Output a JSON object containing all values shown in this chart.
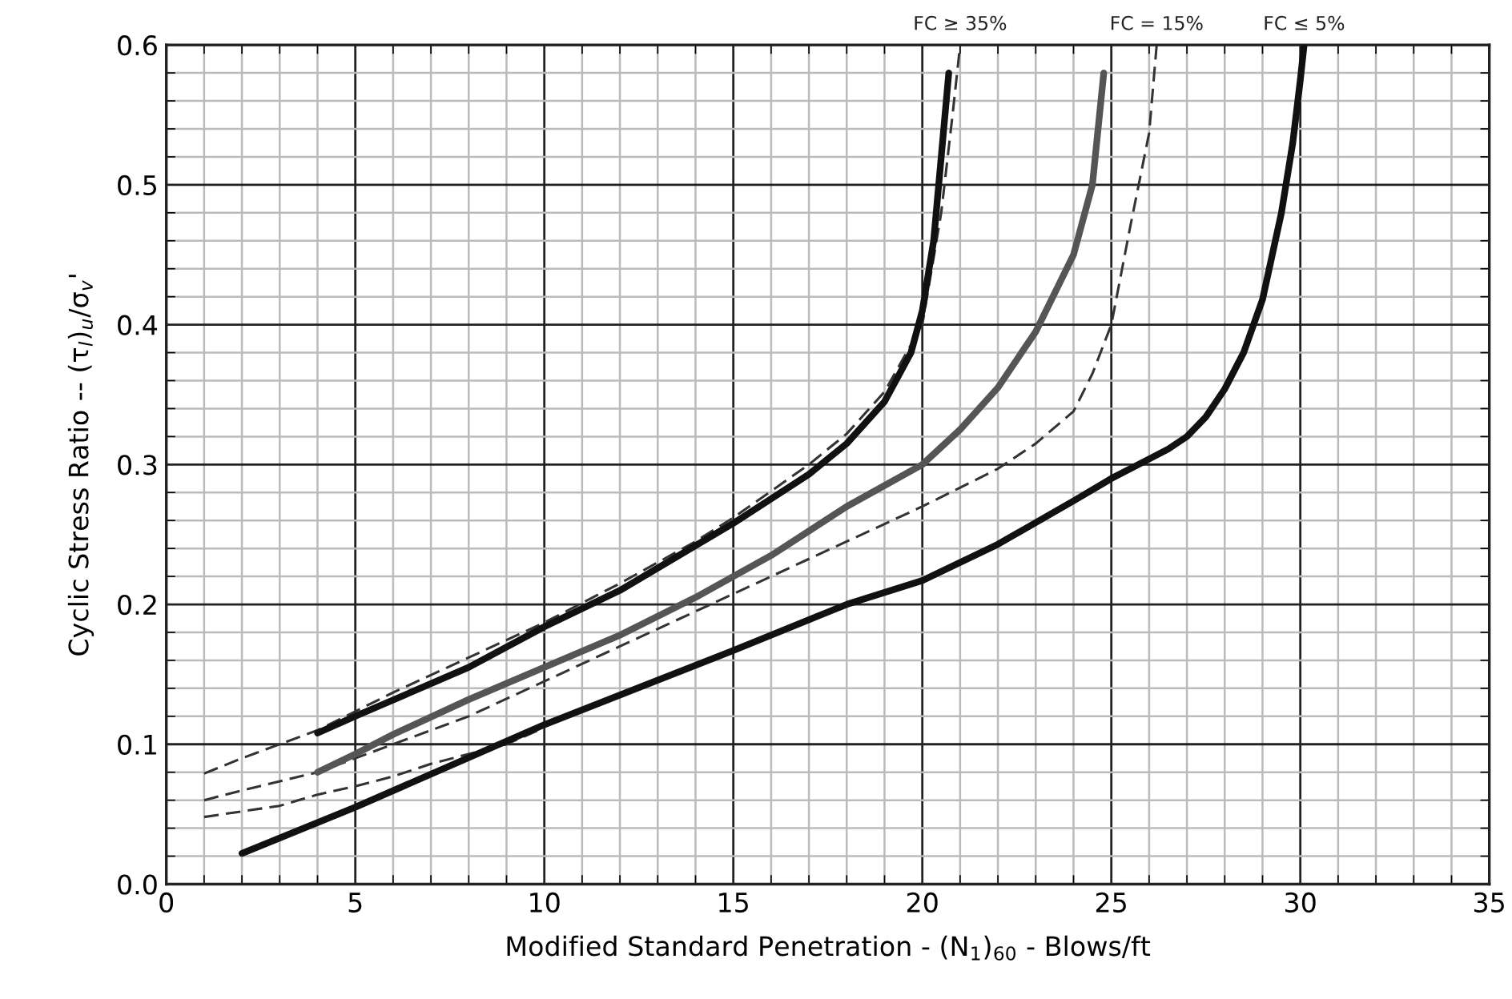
{
  "chart_data": {
    "type": "line",
    "xlabel": "Modified Standard Penetration - (N$_{1}$)$_{60}$ - Blows/ft",
    "ylabel": "Cyclic Stress Ratio -- (τ$_{l}$)$_{u}$/σ$_{v}$'",
    "xlim": [
      0,
      35
    ],
    "ylim": [
      0.0,
      0.6
    ],
    "xticks": [
      0,
      5,
      10,
      15,
      20,
      25,
      30,
      35
    ],
    "yticks": [
      {
        "value": 0.0,
        "label": "0.0"
      },
      0.1,
      0.2,
      0.3,
      0.4,
      0.5,
      0.6
    ],
    "grid": true,
    "marker": "none",
    "series": [
      {
        "color": "#333333",
        "line_style": "dashed",
        "x": [
          1,
          2,
          3,
          4,
          6,
          8,
          10,
          12,
          14,
          15,
          17,
          18,
          19,
          20,
          20.5,
          20.8,
          21
        ],
        "values": [
          0.079,
          0.09,
          0.1,
          0.11,
          0.137,
          0.162,
          0.187,
          0.215,
          0.245,
          0.262,
          0.3,
          0.322,
          0.352,
          0.4,
          0.48,
          0.55,
          0.6
        ]
      },
      {
        "color": "#333333",
        "line_style": "dashed",
        "x": [
          1,
          2,
          4,
          6,
          8,
          10,
          12,
          14,
          16,
          18,
          20,
          22,
          23,
          24,
          24.5,
          25,
          25.5,
          26,
          26.2
        ],
        "values": [
          0.06,
          0.067,
          0.08,
          0.1,
          0.12,
          0.145,
          0.17,
          0.195,
          0.22,
          0.245,
          0.27,
          0.297,
          0.315,
          0.338,
          0.365,
          0.4,
          0.47,
          0.537,
          0.6
        ]
      },
      {
        "color": "#333333",
        "line_style": "dashed",
        "x": [
          1,
          2,
          3,
          4,
          5,
          6,
          7,
          8,
          9,
          10
        ],
        "values": [
          0.048,
          0.052,
          0.056,
          0.064,
          0.07,
          0.077,
          0.086,
          0.093,
          0.1,
          0.112
        ]
      },
      {
        "color": "#111111",
        "line_style": "solid",
        "x": [
          4,
          5,
          8,
          10,
          12,
          15,
          17,
          18,
          19,
          19.7,
          20,
          20.3,
          20.5,
          20.7
        ],
        "values": [
          0.108,
          0.12,
          0.155,
          0.184,
          0.21,
          0.258,
          0.293,
          0.315,
          0.345,
          0.38,
          0.41,
          0.46,
          0.52,
          0.58
        ]
      },
      {
        "color": "#555555",
        "line_style": "solid",
        "x": [
          4,
          5,
          6,
          8,
          10,
          12,
          14,
          16,
          18,
          20,
          21,
          22,
          23,
          24,
          24.5,
          24.8
        ],
        "values": [
          0.08,
          0.093,
          0.107,
          0.132,
          0.155,
          0.178,
          0.205,
          0.235,
          0.27,
          0.3,
          0.325,
          0.355,
          0.395,
          0.45,
          0.5,
          0.58
        ]
      },
      {
        "color": "#111111",
        "line_style": "solid",
        "x": [
          2,
          5,
          10,
          15,
          18,
          20,
          22,
          24,
          25,
          26,
          26.5,
          27,
          27.5,
          28,
          28.5,
          29,
          29.5,
          29.8,
          30,
          30.1
        ],
        "values": [
          0.022,
          0.055,
          0.114,
          0.167,
          0.2,
          0.217,
          0.243,
          0.274,
          0.29,
          0.304,
          0.311,
          0.32,
          0.334,
          0.354,
          0.38,
          0.418,
          0.48,
          0.53,
          0.575,
          0.6
        ]
      }
    ],
    "annotations": [
      {
        "text": "FC ≥ 35%",
        "x": 21,
        "y": 0.6
      },
      {
        "text": "FC = 15%",
        "x": 26.2,
        "y": 0.6
      },
      {
        "text": "FC ≤ 5%",
        "x": 30.1,
        "y": 0.6
      }
    ]
  }
}
